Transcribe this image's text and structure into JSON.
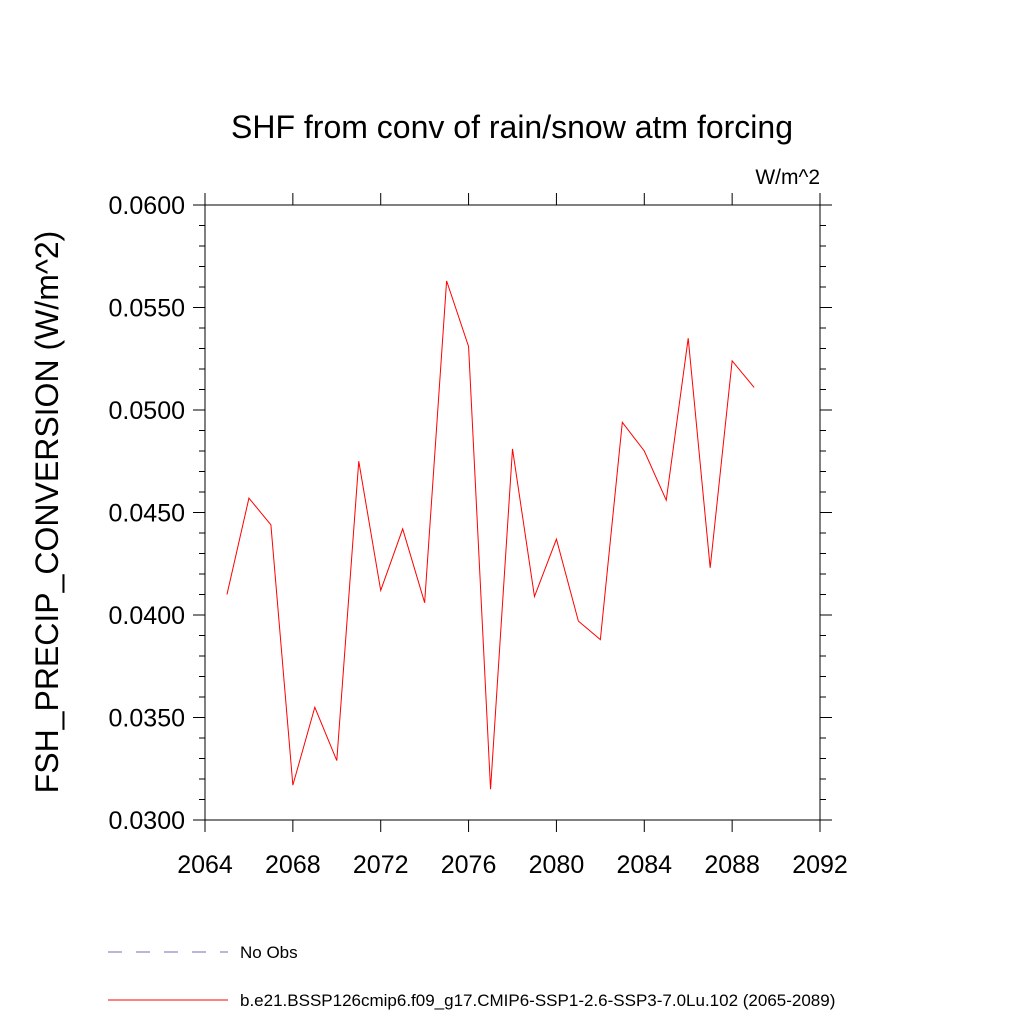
{
  "chart_data": {
    "type": "line",
    "title": "SHF from conv of rain/snow atm forcing",
    "units_label": "W/m^2",
    "xlabel": "",
    "ylabel": "FSH_PRECIP_CONVERSION  (W/m^2)",
    "xlim": [
      2064,
      2092
    ],
    "ylim": [
      0.03,
      0.06
    ],
    "x_ticks": [
      "2064",
      "2068",
      "2072",
      "2076",
      "2080",
      "2084",
      "2088",
      "2092"
    ],
    "y_ticks": [
      "0.0300",
      "0.0350",
      "0.0400",
      "0.0450",
      "0.0500",
      "0.0550",
      "0.0600"
    ],
    "grid": false,
    "legend_position": "bottom",
    "series": [
      {
        "name": "b.e21.BSSP126cmip6.f09_g17.CMIP6-SSP1-2.6-SSP3-7.0Lu.102 (2065-2089)",
        "color": "#ff0000",
        "style": "solid",
        "x": [
          2065,
          2066,
          2067,
          2068,
          2069,
          2070,
          2071,
          2072,
          2073,
          2074,
          2075,
          2076,
          2077,
          2078,
          2079,
          2080,
          2081,
          2082,
          2083,
          2084,
          2085,
          2086,
          2087,
          2088,
          2089
        ],
        "values": [
          0.041,
          0.0457,
          0.0444,
          0.0317,
          0.0355,
          0.0329,
          0.0475,
          0.0412,
          0.0442,
          0.0406,
          0.0563,
          0.0531,
          0.0315,
          0.0481,
          0.0409,
          0.0437,
          0.0397,
          0.0388,
          0.0494,
          0.048,
          0.0456,
          0.0535,
          0.0423,
          0.0524,
          0.0511
        ]
      }
    ],
    "legend": [
      {
        "label": "No Obs",
        "color": "#7b68b0",
        "style": "dashed"
      },
      {
        "label": "b.e21.BSSP126cmip6.f09_g17.CMIP6-SSP1-2.6-SSP3-7.0Lu.102 (2065-2089)",
        "color": "#ff0000",
        "style": "solid"
      }
    ]
  }
}
